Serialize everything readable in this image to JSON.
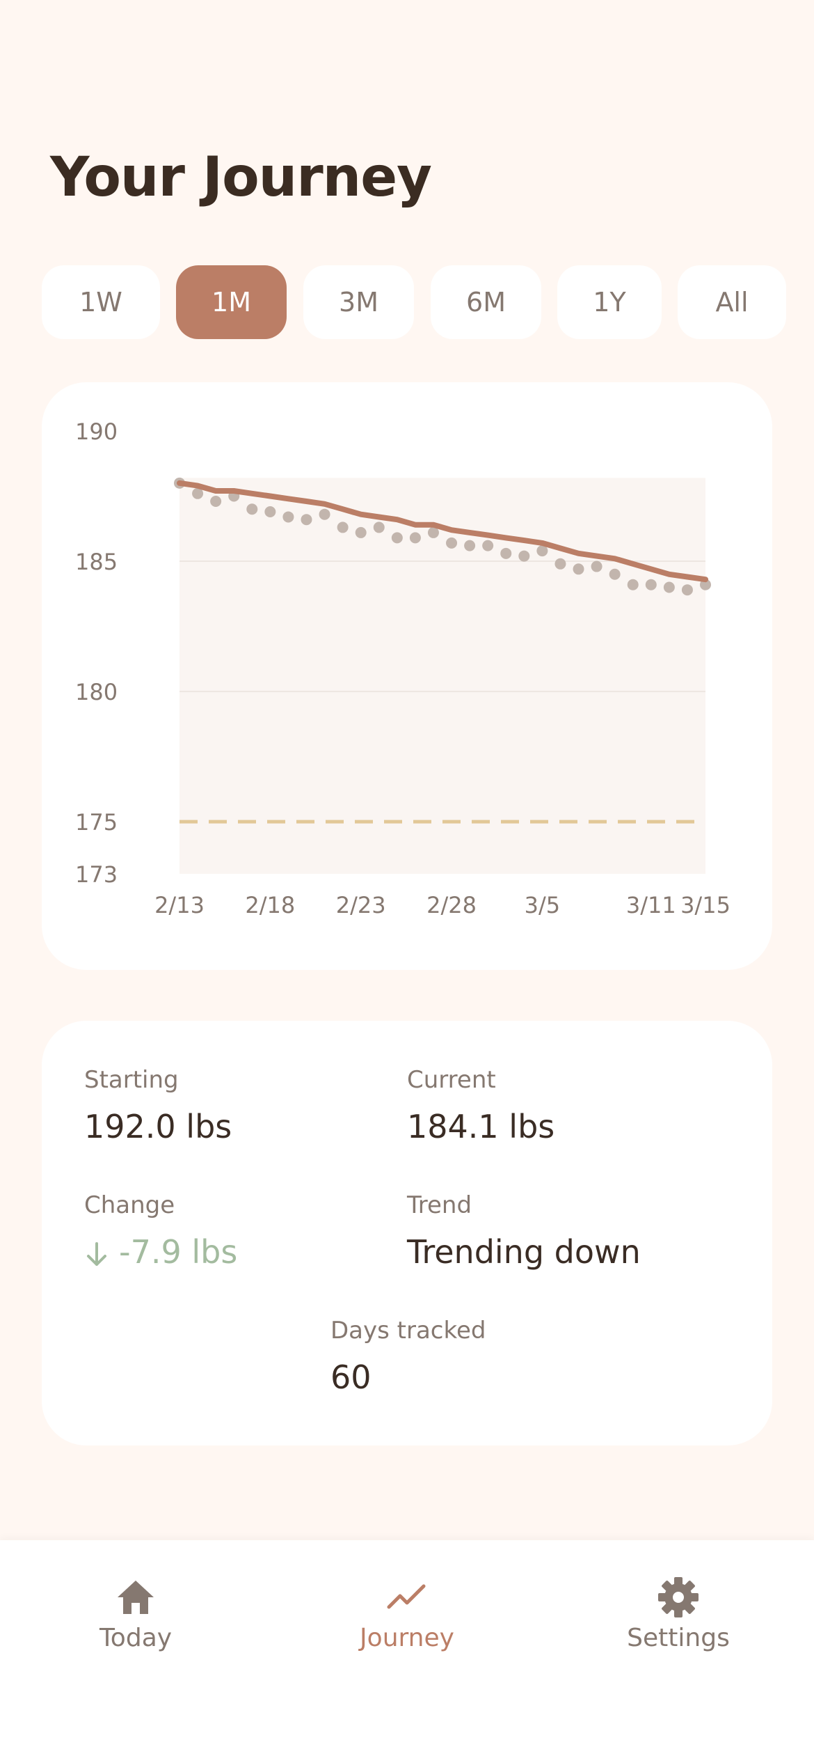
{
  "page": {
    "title": "Your Journey"
  },
  "ranges": [
    {
      "label": "1W",
      "active": false
    },
    {
      "label": "1M",
      "active": true
    },
    {
      "label": "3M",
      "active": false
    },
    {
      "label": "6M",
      "active": false
    },
    {
      "label": "1Y",
      "active": false
    },
    {
      "label": "All",
      "active": false
    }
  ],
  "chart_data": {
    "type": "line",
    "x_tick_labels": [
      "2/13",
      "2/18",
      "2/23",
      "2/28",
      "3/5",
      "3/11",
      "3/15"
    ],
    "y_tick_labels": [
      "190",
      "185",
      "180",
      "175",
      "173"
    ],
    "y_ticks": [
      190,
      185,
      180,
      175,
      173
    ],
    "ylim": [
      173,
      190
    ],
    "goal": 175,
    "grid": true,
    "series": [
      {
        "style": "points",
        "values": [
          188.0,
          187.6,
          187.3,
          187.5,
          187.0,
          186.9,
          186.7,
          186.6,
          186.8,
          186.3,
          186.1,
          186.3,
          185.9,
          185.9,
          186.1,
          185.7,
          185.6,
          185.6,
          185.3,
          185.2,
          185.4,
          184.9,
          184.7,
          184.8,
          184.5,
          184.1,
          184.1,
          184.0,
          183.9,
          184.1
        ]
      },
      {
        "style": "trend-line",
        "values": [
          188.0,
          187.9,
          187.7,
          187.7,
          187.6,
          187.5,
          187.4,
          187.3,
          187.2,
          187.0,
          186.8,
          186.7,
          186.6,
          186.4,
          186.4,
          186.2,
          186.1,
          186.0,
          185.9,
          185.8,
          185.7,
          185.5,
          185.3,
          185.2,
          185.1,
          184.9,
          184.7,
          184.5,
          184.4,
          184.3
        ]
      }
    ],
    "colors": {
      "trend": "#bb7e66",
      "points": "#c2b5ad",
      "goal": "#e2c897",
      "fill": "#faf5f2"
    }
  },
  "stats": {
    "starting_label": "Starting",
    "starting_value": "192.0 lbs",
    "current_label": "Current",
    "current_value": "184.1 lbs",
    "change_label": "Change",
    "change_value": "-7.9 lbs",
    "change_icon": "arrow-down-icon",
    "trend_label": "Trend",
    "trend_value": "Trending down",
    "days_label": "Days tracked",
    "days_value": "60"
  },
  "nav": {
    "items": [
      {
        "label": "Today",
        "icon": "home-icon",
        "active": false
      },
      {
        "label": "Journey",
        "icon": "trend-icon",
        "active": true
      },
      {
        "label": "Settings",
        "icon": "gear-icon",
        "active": false
      }
    ]
  },
  "theme": {
    "accent": "#bb7e66",
    "background": "#fff7f2",
    "positive": "#a3bb9f"
  }
}
